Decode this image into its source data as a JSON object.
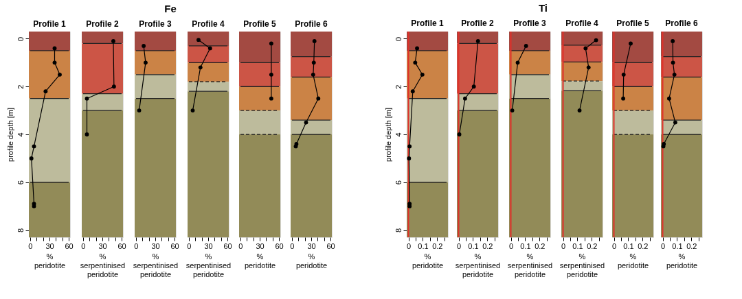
{
  "chart_data": [
    {
      "type": "line",
      "annotations": [
        "Fe"
      ],
      "title": "Profile 1",
      "xlabel": "% peridotite",
      "ylabel": "profile depth [m]",
      "xlim": [
        -2,
        62
      ],
      "xticks": [
        0,
        {
          "value": 10,
          "label": null
        },
        {
          "value": 20,
          "label": null
        },
        30,
        {
          "value": 40,
          "label": null
        },
        {
          "value": 50,
          "label": null
        },
        60
      ],
      "ylim": [
        8.3,
        -0.3
      ],
      "yticks": [
        0,
        2,
        4,
        6,
        8
      ],
      "marker": "circle",
      "line_style": "solid",
      "bands": [
        {
          "axis": "y",
          "from": -0.3,
          "to": 0.5,
          "color": "#a34a42"
        },
        {
          "axis": "y",
          "from": 0.5,
          "to": 2.5,
          "color": "#cb8346"
        },
        {
          "axis": "y",
          "from": 2.5,
          "to": 6.0,
          "color": "#bdbb9c"
        },
        {
          "axis": "y",
          "from": 6.0,
          "to": 8.3,
          "color": "#928b58"
        }
      ],
      "ref_lines": [
        {
          "axis": "y",
          "value": 0.5,
          "color": "#222222",
          "line_style": "solid"
        },
        {
          "axis": "y",
          "value": 2.5,
          "color": "#222222",
          "line_style": "solid"
        },
        {
          "axis": "y",
          "value": 6.0,
          "color": "#222222",
          "line_style": "solid"
        }
      ],
      "series": [
        {
          "color": "#000000",
          "x": [
            38,
            38,
            46,
            24,
            6,
            2,
            6,
            6
          ],
          "values": [
            0.4,
            1.0,
            1.5,
            2.2,
            4.5,
            5.0,
            6.9,
            7.0
          ]
        }
      ]
    },
    {
      "type": "line",
      "title": "Profile 2",
      "xlabel": "% serpentinised peridotite",
      "tick_labels": "x",
      "xlim": [
        -2,
        62
      ],
      "xticks": [
        0,
        {
          "value": 10,
          "label": null
        },
        {
          "value": 20,
          "label": null
        },
        30,
        {
          "value": 40,
          "label": null
        },
        {
          "value": 50,
          "label": null
        },
        60
      ],
      "ylim": [
        8.3,
        -0.3
      ],
      "marker": "circle",
      "line_style": "solid",
      "bands": [
        {
          "axis": "y",
          "from": -0.3,
          "to": 0.2,
          "color": "#a34a42"
        },
        {
          "axis": "y",
          "from": 0.2,
          "to": 2.3,
          "color": "#cc5546"
        },
        {
          "axis": "y",
          "from": 2.3,
          "to": 3.0,
          "color": "#bdbb9c"
        },
        {
          "axis": "y",
          "from": 3.0,
          "to": 8.3,
          "color": "#928b58"
        }
      ],
      "ref_lines": [
        {
          "axis": "y",
          "value": 0.2,
          "color": "#222222",
          "line_style": "solid"
        },
        {
          "axis": "y",
          "value": 2.3,
          "color": "#222222",
          "line_style": "solid"
        },
        {
          "axis": "y",
          "value": 3.0,
          "color": "#222222",
          "line_style": "solid"
        }
      ],
      "series": [
        {
          "color": "#000000",
          "x": [
            47,
            48,
            6,
            6
          ],
          "values": [
            0.1,
            2.0,
            2.5,
            4.0
          ]
        }
      ]
    },
    {
      "type": "line",
      "title": "Profile 3",
      "xlabel": "% serpentinised peridotite",
      "tick_labels": "x",
      "xlim": [
        -2,
        62
      ],
      "xticks": [
        0,
        {
          "value": 10,
          "label": null
        },
        {
          "value": 20,
          "label": null
        },
        30,
        {
          "value": 40,
          "label": null
        },
        {
          "value": 50,
          "label": null
        },
        60
      ],
      "ylim": [
        8.3,
        -0.3
      ],
      "marker": "circle",
      "line_style": "solid",
      "bands": [
        {
          "axis": "y",
          "from": -0.3,
          "to": 0.5,
          "color": "#a34a42"
        },
        {
          "axis": "y",
          "from": 0.5,
          "to": 1.5,
          "color": "#cb8346"
        },
        {
          "axis": "y",
          "from": 1.5,
          "to": 2.5,
          "color": "#bdbb9c"
        },
        {
          "axis": "y",
          "from": 2.5,
          "to": 8.3,
          "color": "#928b58"
        }
      ],
      "ref_lines": [
        {
          "axis": "y",
          "value": 0.5,
          "color": "#222222",
          "line_style": "solid"
        },
        {
          "axis": "y",
          "value": 1.5,
          "color": "#222222",
          "line_style": "solid"
        },
        {
          "axis": "y",
          "value": 2.5,
          "color": "#222222",
          "line_style": "solid"
        }
      ],
      "series": [
        {
          "color": "#000000",
          "x": [
            12,
            15,
            5
          ],
          "values": [
            0.3,
            1.0,
            3.0
          ]
        }
      ]
    },
    {
      "type": "line",
      "title": "Profile 4",
      "xlabel": "% serpentinised peridotite",
      "tick_labels": "x",
      "xlim": [
        -2,
        62
      ],
      "xticks": [
        0,
        {
          "value": 10,
          "label": null
        },
        {
          "value": 20,
          "label": null
        },
        30,
        {
          "value": 40,
          "label": null
        },
        {
          "value": 50,
          "label": null
        },
        60
      ],
      "ylim": [
        8.3,
        -0.3
      ],
      "marker": "circle",
      "line_style": "solid",
      "bands": [
        {
          "axis": "y",
          "from": -0.3,
          "to": 0.3,
          "color": "#a34a42"
        },
        {
          "axis": "y",
          "from": 0.3,
          "to": 1.0,
          "color": "#cc5546"
        },
        {
          "axis": "y",
          "from": 1.0,
          "to": 1.8,
          "color": "#cb8346"
        },
        {
          "axis": "y",
          "from": 1.8,
          "to": 2.2,
          "color": "#bdbb9c"
        },
        {
          "axis": "y",
          "from": 2.2,
          "to": 8.3,
          "color": "#928b58"
        }
      ],
      "ref_lines": [
        {
          "axis": "y",
          "value": 0.3,
          "color": "#222222",
          "line_style": "solid"
        },
        {
          "axis": "y",
          "value": 1.0,
          "color": "#222222",
          "line_style": "solid"
        },
        {
          "axis": "y",
          "value": 1.8,
          "color": "#222222",
          "line_style": "dashed"
        },
        {
          "axis": "y",
          "value": 2.2,
          "color": "#222222",
          "line_style": "solid"
        }
      ],
      "series": [
        {
          "color": "#000000",
          "x": [
            15,
            33,
            18,
            6
          ],
          "values": [
            0.05,
            0.4,
            1.2,
            3.0
          ]
        }
      ]
    },
    {
      "type": "line",
      "title": "Profile 5",
      "xlabel": "% peridotite",
      "tick_labels": "x",
      "xlim": [
        -2,
        62
      ],
      "xticks": [
        0,
        {
          "value": 10,
          "label": null
        },
        {
          "value": 20,
          "label": null
        },
        30,
        {
          "value": 40,
          "label": null
        },
        {
          "value": 50,
          "label": null
        },
        60
      ],
      "ylim": [
        8.3,
        -0.3
      ],
      "marker": "circle",
      "line_style": "solid",
      "bands": [
        {
          "axis": "y",
          "from": -0.3,
          "to": 1.0,
          "color": "#a34a42"
        },
        {
          "axis": "y",
          "from": 1.0,
          "to": 2.0,
          "color": "#cc5546"
        },
        {
          "axis": "y",
          "from": 2.0,
          "to": 3.0,
          "color": "#cb8346"
        },
        {
          "axis": "y",
          "from": 3.0,
          "to": 4.0,
          "color": "#bdbb9c"
        },
        {
          "axis": "y",
          "from": 4.0,
          "to": 8.3,
          "color": "#928b58"
        }
      ],
      "ref_lines": [
        {
          "axis": "y",
          "value": 1.0,
          "color": "#222222",
          "line_style": "solid"
        },
        {
          "axis": "y",
          "value": 2.0,
          "color": "#222222",
          "line_style": "solid"
        },
        {
          "axis": "y",
          "value": 3.0,
          "color": "#222222",
          "line_style": "dashed"
        },
        {
          "axis": "y",
          "value": 4.0,
          "color": "#222222",
          "line_style": "dashed"
        }
      ],
      "series": [
        {
          "color": "#000000",
          "x": [
            48,
            48,
            48
          ],
          "values": [
            0.2,
            1.5,
            2.5
          ]
        }
      ]
    },
    {
      "type": "line",
      "title": "Profile 6",
      "xlabel": "% peridotite",
      "tick_labels": "x",
      "xlim": [
        -2,
        62
      ],
      "xticks": [
        0,
        {
          "value": 10,
          "label": null
        },
        {
          "value": 20,
          "label": null
        },
        30,
        {
          "value": 40,
          "label": null
        },
        {
          "value": 50,
          "label": null
        },
        60
      ],
      "ylim": [
        8.3,
        -0.3
      ],
      "marker": "circle",
      "line_style": "solid",
      "bands": [
        {
          "axis": "y",
          "from": -0.3,
          "to": 0.75,
          "color": "#a34a42"
        },
        {
          "axis": "y",
          "from": 0.75,
          "to": 1.6,
          "color": "#cc5546"
        },
        {
          "axis": "y",
          "from": 1.6,
          "to": 3.4,
          "color": "#cb8346"
        },
        {
          "axis": "y",
          "from": 3.4,
          "to": 4.0,
          "color": "#bdbb9c"
        },
        {
          "axis": "y",
          "from": 4.0,
          "to": 8.3,
          "color": "#928b58"
        }
      ],
      "ref_lines": [
        {
          "axis": "y",
          "value": 0.75,
          "color": "#222222",
          "line_style": "solid"
        },
        {
          "axis": "y",
          "value": 1.6,
          "color": "#222222",
          "line_style": "solid"
        },
        {
          "axis": "y",
          "value": 3.4,
          "color": "#222222",
          "line_style": "solid"
        },
        {
          "axis": "y",
          "value": 4.0,
          "color": "#222222",
          "line_style": "solid"
        }
      ],
      "series": [
        {
          "color": "#000000",
          "x": [
            35,
            34,
            33,
            41,
            22,
            7,
            6
          ],
          "values": [
            0.1,
            1.0,
            1.5,
            2.5,
            3.5,
            4.4,
            4.5
          ]
        }
      ]
    },
    {
      "type": "line",
      "annotations": [
        "Ti"
      ],
      "title": "Profile 1",
      "xlabel": "% peridotite",
      "ylabel": "profile depth [m]",
      "xlim": [
        -0.012,
        0.275
      ],
      "xticks": [
        0,
        {
          "value": 0.05,
          "label": null
        },
        0.1,
        {
          "value": 0.15,
          "label": null
        },
        0.2,
        {
          "value": 0.25,
          "label": null
        }
      ],
      "ylim": [
        8.3,
        -0.3
      ],
      "yticks": [
        0,
        2,
        4,
        6,
        8
      ],
      "marker": "circle",
      "line_style": "solid",
      "bands": [
        {
          "axis": "y",
          "from": -0.3,
          "to": 0.5,
          "color": "#a34a42"
        },
        {
          "axis": "y",
          "from": 0.5,
          "to": 2.5,
          "color": "#cb8346"
        },
        {
          "axis": "y",
          "from": 2.5,
          "to": 6.0,
          "color": "#bdbb9c"
        },
        {
          "axis": "y",
          "from": 6.0,
          "to": 8.3,
          "color": "#928b58"
        }
      ],
      "ref_lines": [
        {
          "axis": "y",
          "value": 0.5,
          "color": "#222222",
          "line_style": "solid"
        },
        {
          "axis": "y",
          "value": 2.5,
          "color": "#222222",
          "line_style": "solid"
        },
        {
          "axis": "y",
          "value": 6.0,
          "color": "#222222",
          "line_style": "solid"
        },
        {
          "axis": "x",
          "value": 0,
          "color": "#e0302a",
          "line_style": "solid"
        }
      ],
      "series": [
        {
          "color": "#000000",
          "x": [
            0.06,
            0.047,
            0.097,
            0.03,
            0.008,
            0.004,
            0.008,
            0.008
          ],
          "values": [
            0.4,
            1.0,
            1.5,
            2.2,
            4.5,
            5.0,
            6.9,
            7.0
          ]
        }
      ]
    },
    {
      "type": "line",
      "title": "Profile 2",
      "xlabel": "% serpentinised peridotite",
      "tick_labels": "x",
      "xlim": [
        -0.012,
        0.275
      ],
      "xticks": [
        0,
        {
          "value": 0.05,
          "label": null
        },
        0.1,
        {
          "value": 0.15,
          "label": null
        },
        0.2,
        {
          "value": 0.25,
          "label": null
        }
      ],
      "ylim": [
        8.3,
        -0.3
      ],
      "marker": "circle",
      "line_style": "solid",
      "bands": [
        {
          "axis": "y",
          "from": -0.3,
          "to": 0.2,
          "color": "#a34a42"
        },
        {
          "axis": "y",
          "from": 0.2,
          "to": 2.3,
          "color": "#cc5546"
        },
        {
          "axis": "y",
          "from": 2.3,
          "to": 3.0,
          "color": "#bdbb9c"
        },
        {
          "axis": "y",
          "from": 3.0,
          "to": 8.3,
          "color": "#928b58"
        }
      ],
      "ref_lines": [
        {
          "axis": "y",
          "value": 0.2,
          "color": "#222222",
          "line_style": "solid"
        },
        {
          "axis": "y",
          "value": 2.3,
          "color": "#222222",
          "line_style": "solid"
        },
        {
          "axis": "y",
          "value": 3.0,
          "color": "#222222",
          "line_style": "solid"
        },
        {
          "axis": "x",
          "value": 0,
          "color": "#e0302a",
          "line_style": "solid"
        }
      ],
      "series": [
        {
          "color": "#000000",
          "x": [
            0.135,
            0.106,
            0.045,
            0.005
          ],
          "values": [
            0.1,
            2.0,
            2.5,
            4.0
          ]
        }
      ]
    },
    {
      "type": "line",
      "title": "Profile 3",
      "xlabel": "% serpentinised peridotite",
      "tick_labels": "x",
      "xlim": [
        -0.012,
        0.275
      ],
      "xticks": [
        0,
        {
          "value": 0.05,
          "label": null
        },
        0.1,
        {
          "value": 0.15,
          "label": null
        },
        0.2,
        {
          "value": 0.25,
          "label": null
        }
      ],
      "ylim": [
        8.3,
        -0.3
      ],
      "marker": "circle",
      "line_style": "solid",
      "bands": [
        {
          "axis": "y",
          "from": -0.3,
          "to": 0.5,
          "color": "#a34a42"
        },
        {
          "axis": "y",
          "from": 0.5,
          "to": 1.5,
          "color": "#cb8346"
        },
        {
          "axis": "y",
          "from": 1.5,
          "to": 2.5,
          "color": "#bdbb9c"
        },
        {
          "axis": "y",
          "from": 2.5,
          "to": 8.3,
          "color": "#928b58"
        }
      ],
      "ref_lines": [
        {
          "axis": "y",
          "value": 0.5,
          "color": "#222222",
          "line_style": "solid"
        },
        {
          "axis": "y",
          "value": 1.5,
          "color": "#222222",
          "line_style": "solid"
        },
        {
          "axis": "y",
          "value": 2.5,
          "color": "#222222",
          "line_style": "solid"
        },
        {
          "axis": "x",
          "value": 0,
          "color": "#e0302a",
          "line_style": "solid"
        }
      ],
      "series": [
        {
          "color": "#000000",
          "x": [
            0.106,
            0.048,
            0.01
          ],
          "values": [
            0.3,
            1.0,
            3.0
          ]
        }
      ]
    },
    {
      "type": "line",
      "title": "Profile 4",
      "xlabel": "% serpentinised peridotite",
      "tick_labels": "x",
      "xlim": [
        -0.012,
        0.275
      ],
      "xticks": [
        0,
        {
          "value": 0.05,
          "label": null
        },
        0.1,
        {
          "value": 0.15,
          "label": null
        },
        0.2,
        {
          "value": 0.25,
          "label": null
        }
      ],
      "ylim": [
        8.3,
        -0.3
      ],
      "marker": "circle",
      "line_style": "solid",
      "bands": [
        {
          "axis": "y",
          "from": -0.3,
          "to": 0.27,
          "color": "#a34a42"
        },
        {
          "axis": "y",
          "from": 0.27,
          "to": 0.97,
          "color": "#cc5546"
        },
        {
          "axis": "y",
          "from": 0.97,
          "to": 1.77,
          "color": "#cb8346"
        },
        {
          "axis": "y",
          "from": 1.77,
          "to": 2.17,
          "color": "#bdbb9c"
        },
        {
          "axis": "y",
          "from": 2.17,
          "to": 8.3,
          "color": "#928b58"
        }
      ],
      "ref_lines": [
        {
          "axis": "y",
          "value": 0.27,
          "color": "#222222",
          "line_style": "solid"
        },
        {
          "axis": "y",
          "value": 0.97,
          "color": "#222222",
          "line_style": "solid"
        },
        {
          "axis": "y",
          "value": 1.77,
          "color": "#222222",
          "line_style": "dashed"
        },
        {
          "axis": "y",
          "value": 2.17,
          "color": "#222222",
          "line_style": "solid"
        },
        {
          "axis": "x",
          "value": 0,
          "color": "#e0302a",
          "line_style": "solid"
        }
      ],
      "series": [
        {
          "color": "#000000",
          "x": [
            0.23,
            0.157,
            0.178,
            0.115
          ],
          "values": [
            0.06,
            0.4,
            1.2,
            3.0
          ]
        }
      ]
    },
    {
      "type": "line",
      "title": "Profile 5",
      "xlabel": "% peridotite",
      "tick_labels": "x",
      "xlim": [
        -0.012,
        0.275
      ],
      "xticks": [
        0,
        {
          "value": 0.05,
          "label": null
        },
        0.1,
        {
          "value": 0.15,
          "label": null
        },
        0.2,
        {
          "value": 0.25,
          "label": null
        }
      ],
      "ylim": [
        8.3,
        -0.3
      ],
      "marker": "circle",
      "line_style": "solid",
      "bands": [
        {
          "axis": "y",
          "from": -0.3,
          "to": 1.0,
          "color": "#a34a42"
        },
        {
          "axis": "y",
          "from": 1.0,
          "to": 2.0,
          "color": "#cc5546"
        },
        {
          "axis": "y",
          "from": 2.0,
          "to": 3.0,
          "color": "#cb8346"
        },
        {
          "axis": "y",
          "from": 3.0,
          "to": 4.0,
          "color": "#bdbb9c"
        },
        {
          "axis": "y",
          "from": 4.0,
          "to": 8.3,
          "color": "#928b58"
        }
      ],
      "ref_lines": [
        {
          "axis": "y",
          "value": 1.0,
          "color": "#222222",
          "line_style": "solid"
        },
        {
          "axis": "y",
          "value": 2.0,
          "color": "#222222",
          "line_style": "solid"
        },
        {
          "axis": "y",
          "value": 3.0,
          "color": "#222222",
          "line_style": "dashed"
        },
        {
          "axis": "y",
          "value": 4.0,
          "color": "#222222",
          "line_style": "dashed"
        },
        {
          "axis": "x",
          "value": 0,
          "color": "#e0302a",
          "line_style": "solid"
        }
      ],
      "series": [
        {
          "color": "#000000",
          "x": [
            0.117,
            0.068,
            0.065
          ],
          "values": [
            0.2,
            1.5,
            2.5
          ]
        }
      ]
    },
    {
      "type": "line",
      "title": "Profile 6",
      "xlabel": "% peridotite",
      "tick_labels": "x",
      "xlim": [
        -0.012,
        0.275
      ],
      "xticks": [
        0,
        {
          "value": 0.05,
          "label": null
        },
        0.1,
        {
          "value": 0.15,
          "label": null
        },
        0.2,
        {
          "value": 0.25,
          "label": null
        }
      ],
      "ylim": [
        8.3,
        -0.3
      ],
      "marker": "circle",
      "line_style": "solid",
      "bands": [
        {
          "axis": "y",
          "from": -0.3,
          "to": 0.75,
          "color": "#a34a42"
        },
        {
          "axis": "y",
          "from": 0.75,
          "to": 1.6,
          "color": "#cc5546"
        },
        {
          "axis": "y",
          "from": 1.6,
          "to": 3.4,
          "color": "#cb8346"
        },
        {
          "axis": "y",
          "from": 3.4,
          "to": 4.0,
          "color": "#bdbb9c"
        },
        {
          "axis": "y",
          "from": 4.0,
          "to": 8.3,
          "color": "#928b58"
        }
      ],
      "ref_lines": [
        {
          "axis": "y",
          "value": 0.75,
          "color": "#222222",
          "line_style": "solid"
        },
        {
          "axis": "y",
          "value": 1.6,
          "color": "#222222",
          "line_style": "solid"
        },
        {
          "axis": "y",
          "value": 3.4,
          "color": "#222222",
          "line_style": "solid"
        },
        {
          "axis": "y",
          "value": 4.0,
          "color": "#222222",
          "line_style": "solid"
        },
        {
          "axis": "x",
          "value": 0,
          "color": "#e0302a",
          "line_style": "solid"
        }
      ],
      "series": [
        {
          "color": "#000000",
          "x": [
            0.07,
            0.072,
            0.082,
            0.045,
            0.088,
            0.008,
            0.005
          ],
          "values": [
            0.1,
            1.0,
            1.5,
            2.5,
            3.5,
            4.4,
            4.5
          ]
        }
      ]
    }
  ]
}
